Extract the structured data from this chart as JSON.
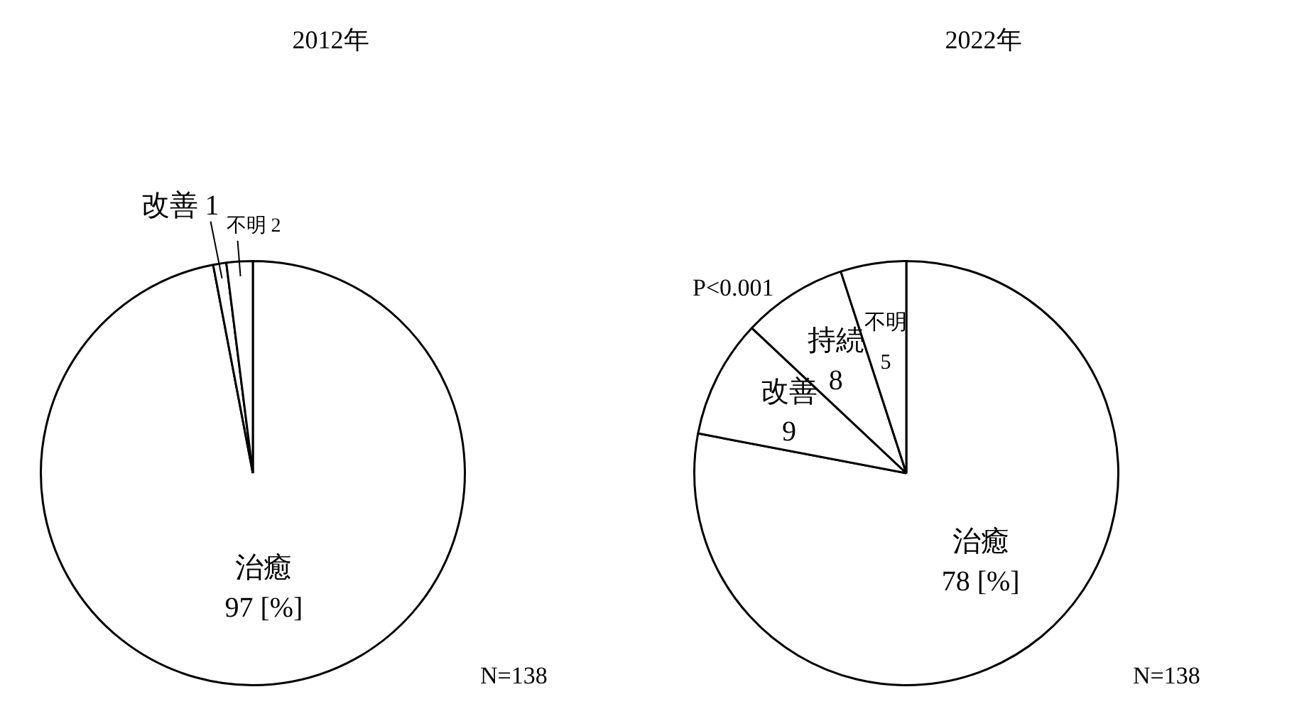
{
  "chart_data": [
    {
      "type": "pie",
      "title": "2012年",
      "categories": [
        "治癒",
        "改善",
        "不明"
      ],
      "values": [
        97,
        1,
        2
      ],
      "value_labels": [
        "97 [%]",
        "1",
        "2"
      ],
      "colors": [
        "#ffffff",
        "#ffffff",
        "#ffffff"
      ],
      "legend": false,
      "annotations": [
        "N=138"
      ]
    },
    {
      "type": "pie",
      "title": "2022年",
      "categories": [
        "治癒",
        "改善",
        "持続",
        "不明"
      ],
      "values": [
        78,
        9,
        8,
        5
      ],
      "value_labels": [
        "78 [%]",
        "9",
        "8",
        "5"
      ],
      "colors": [
        "#ffffff",
        "#ffffff",
        "#ffffff",
        "#ffffff"
      ],
      "legend": false,
      "annotations": [
        "P<0.001",
        "N=138"
      ]
    }
  ]
}
